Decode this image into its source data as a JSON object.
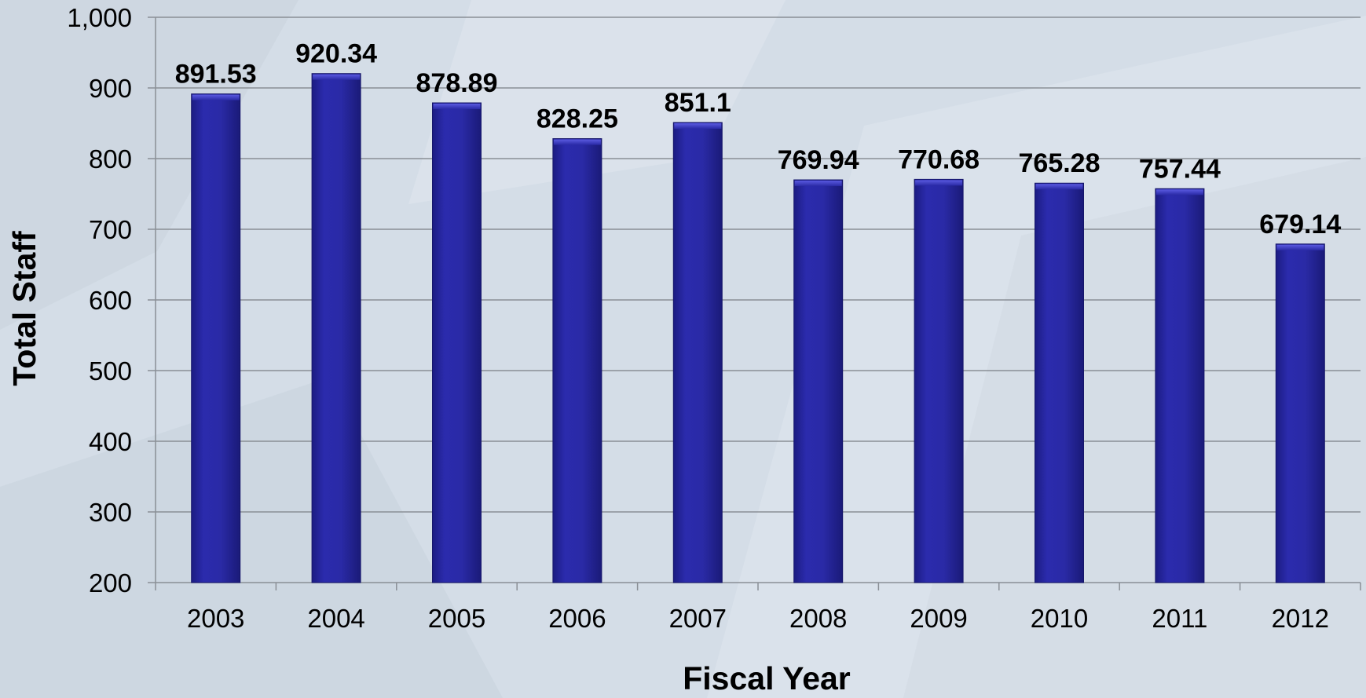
{
  "chart_data": {
    "type": "bar",
    "title": "",
    "xlabel": "Fiscal Year",
    "ylabel": "Total Staff",
    "categories": [
      "2003",
      "2004",
      "2005",
      "2006",
      "2007",
      "2008",
      "2009",
      "2010",
      "2011",
      "2012"
    ],
    "values": [
      891.53,
      920.34,
      878.89,
      828.25,
      851.1,
      769.94,
      770.68,
      765.28,
      757.44,
      679.14
    ],
    "data_labels": [
      "891.53",
      "920.34",
      "878.89",
      "828.25",
      "851.1",
      "769.94",
      "770.68",
      "765.28",
      "757.44",
      "679.14"
    ],
    "ylim": [
      200,
      1000
    ],
    "yticks": [
      200,
      300,
      400,
      500,
      600,
      700,
      800,
      900,
      1000
    ],
    "ytick_labels": [
      "200",
      "300",
      "400",
      "500",
      "600",
      "700",
      "800",
      "900",
      "1,000"
    ],
    "grid": true,
    "bar_color": "#2a2aa6",
    "bar_color_light": "#3d3dc8",
    "bar_color_dark": "#1c1c82"
  }
}
